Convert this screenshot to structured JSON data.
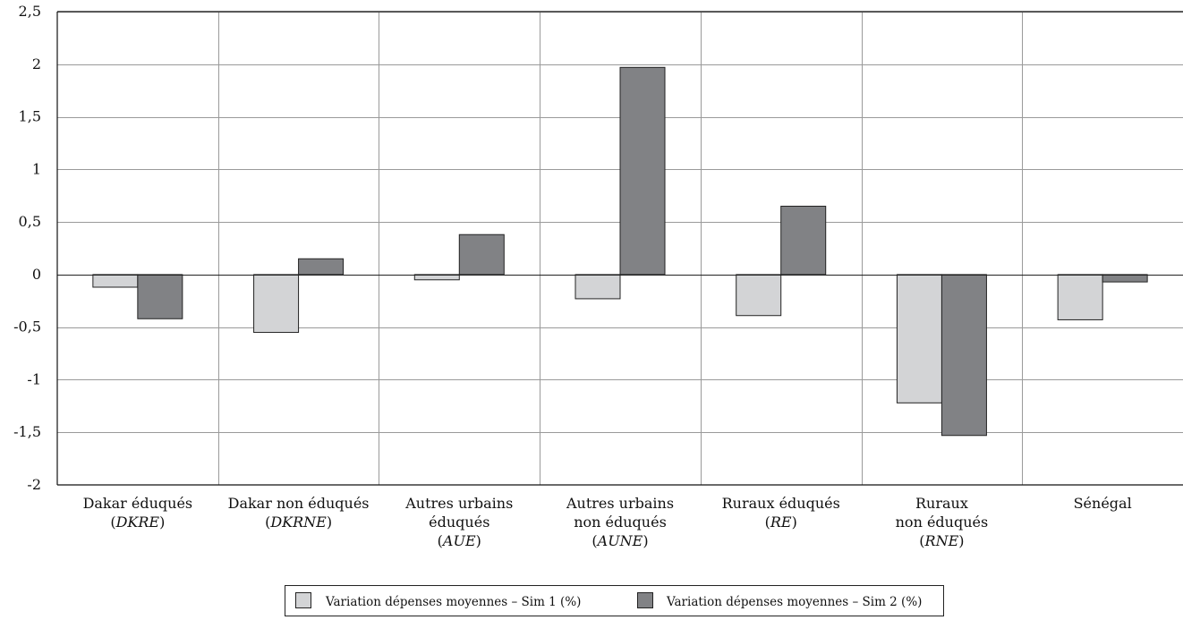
{
  "chart_data": {
    "type": "bar",
    "ylim": [
      -2,
      2.5
    ],
    "yticks": [
      "2,5",
      "2",
      "1,5",
      "1",
      "0,5",
      "0",
      "-0,5",
      "-1",
      "-1,5",
      "-2"
    ],
    "ytick_values": [
      2.5,
      2,
      1.5,
      1,
      0.5,
      0,
      -0.5,
      -1,
      -1.5,
      -2
    ],
    "grid": true,
    "legend_position": "bottom",
    "categories": [
      {
        "lines": [
          [
            "Dakar éduqués",
            ""
          ],
          [
            "(",
            "DKRE",
            ")"
          ]
        ]
      },
      {
        "lines": [
          [
            "Dakar non éduqués",
            ""
          ],
          [
            "(",
            "DKRNE",
            ")"
          ]
        ]
      },
      {
        "lines": [
          [
            "Autres urbains",
            ""
          ],
          [
            "éduqués",
            ""
          ],
          [
            "(",
            "AUE",
            ")"
          ]
        ]
      },
      {
        "lines": [
          [
            "Autres urbains",
            ""
          ],
          [
            "non éduqués",
            ""
          ],
          [
            "(",
            "AUNE",
            ")"
          ]
        ]
      },
      {
        "lines": [
          [
            "Ruraux éduqués",
            ""
          ],
          [
            "(",
            "RE",
            ")"
          ]
        ]
      },
      {
        "lines": [
          [
            "Ruraux",
            ""
          ],
          [
            "non éduqués",
            ""
          ],
          [
            "(",
            "RNE",
            ")"
          ]
        ]
      },
      {
        "lines": [
          [
            "Sénégal",
            ""
          ]
        ]
      }
    ],
    "series": [
      {
        "name": "Variation dépenses moyennes – Sim 1 (%)",
        "color": "#d3d4d6",
        "values": [
          -0.12,
          -0.55,
          -0.05,
          -0.23,
          -0.39,
          -1.22,
          -0.43
        ]
      },
      {
        "name": "Variation dépenses moyennes – Sim 2 (%)",
        "color": "#818285",
        "values": [
          -0.42,
          0.15,
          0.38,
          1.97,
          0.65,
          -1.53,
          -0.07
        ]
      }
    ]
  }
}
